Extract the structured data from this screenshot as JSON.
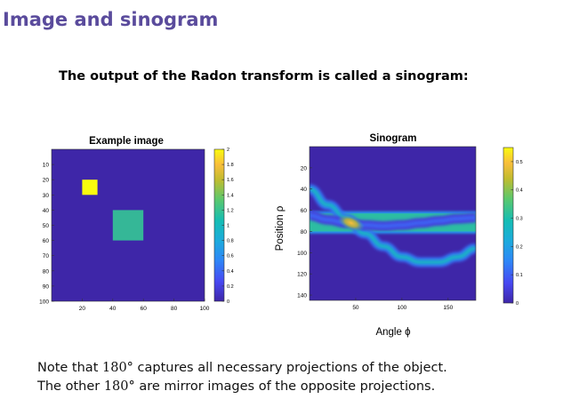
{
  "slide": {
    "title": "Image and sinogram",
    "lead": "The output of the Radon transform is called a sinogram:",
    "note_line1_pre": "Note that ",
    "note_line1_math": "180°",
    "note_line1_post": " captures all necessary projections of the object.",
    "note_line2_pre": "The other ",
    "note_line2_math": "180°",
    "note_line2_post": " are mirror images of the opposite projections."
  },
  "chart_data": [
    {
      "type": "heatmap",
      "title": "Example image",
      "xlabel": "",
      "ylabel": "",
      "xlim": [
        0,
        100
      ],
      "ylim": [
        0,
        100
      ],
      "xticks": [
        "20",
        "40",
        "60",
        "80",
        "100"
      ],
      "yticks": [
        "10",
        "20",
        "30",
        "40",
        "50",
        "60",
        "70",
        "80",
        "90",
        "100"
      ],
      "background_value": 0,
      "squares": [
        {
          "x0": 20,
          "x1": 30,
          "y0": 20,
          "y1": 30,
          "value": 2,
          "color": "#f9fb0e"
        },
        {
          "x0": 40,
          "x1": 60,
          "y0": 40,
          "y1": 60,
          "value": 1,
          "color": "#35b797"
        }
      ],
      "colorbar": {
        "range": [
          0,
          2
        ],
        "ticks": [
          "0",
          "0.2",
          "0.4",
          "0.6",
          "0.8",
          "1",
          "1.2",
          "1.4",
          "1.6",
          "1.8",
          "2"
        ]
      },
      "colormap": [
        "#3e26a8",
        "#4748f2",
        "#2e87f7",
        "#1cabdc",
        "#15bdb4",
        "#5bc86d",
        "#c1bc2f",
        "#f9be3b",
        "#f9fb0e"
      ]
    },
    {
      "type": "heatmap",
      "title": "Sinogram",
      "xlabel": "Angle ϕ",
      "ylabel": "Position ρ",
      "xlim": [
        0,
        180
      ],
      "ylim": [
        0,
        145
      ],
      "xticks": [
        "50",
        "100",
        "150"
      ],
      "yticks": [
        "20",
        "40",
        "60",
        "80",
        "100",
        "120",
        "140"
      ],
      "horizontal_band": {
        "rho0": 61,
        "rho1": 82,
        "value": 0.3
      },
      "curves": [
        {
          "phi": [
            0,
            20,
            40,
            60,
            80,
            100,
            120,
            140,
            160,
            180
          ],
          "rho": [
            40,
            55,
            68,
            82,
            94,
            104,
            109,
            109,
            104,
            96
          ],
          "value": 0.25
        },
        {
          "phi": [
            0,
            20,
            40,
            60,
            80,
            100,
            120,
            140,
            160,
            180
          ],
          "rho": [
            65,
            69,
            72,
            74,
            75,
            74,
            72,
            70,
            68,
            67
          ],
          "value": 0.1
        }
      ],
      "peak": {
        "phi": 45,
        "rho": 72,
        "value": 0.55
      },
      "colorbar": {
        "range": [
          0,
          0.55
        ],
        "ticks": [
          "0",
          "0.1",
          "0.2",
          "0.3",
          "0.4",
          "0.5"
        ]
      }
    }
  ]
}
